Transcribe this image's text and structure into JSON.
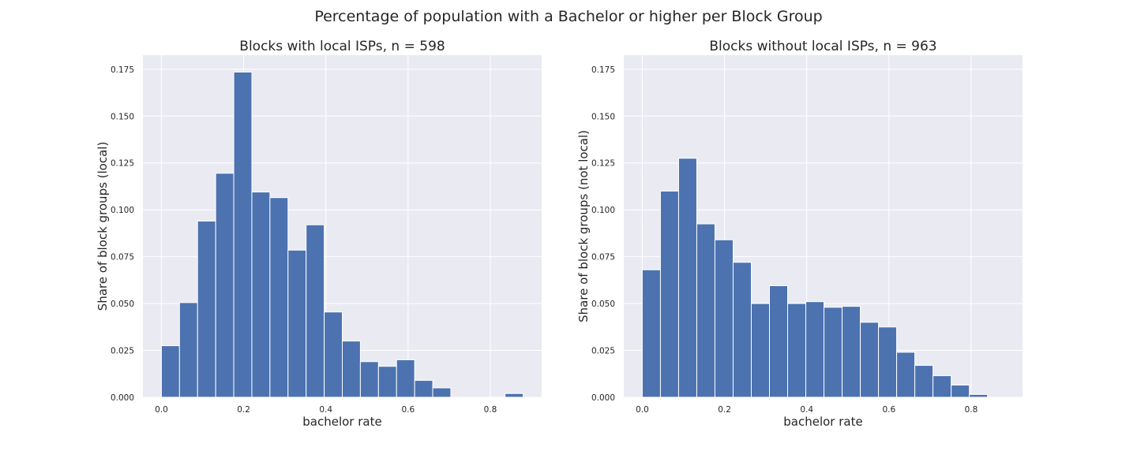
{
  "figure": {
    "title": "Percentage of population with a Bachelor or higher per Block Group"
  },
  "style": {
    "background": "#ffffff",
    "axes_face": "#eaeaf2",
    "grid": "#ffffff",
    "bar_color": "#4c72b0",
    "bar_edge": "#ffffff",
    "text": "#262626"
  },
  "chart_data": [
    {
      "type": "bar",
      "title": "Blocks with local ISPs, n = 598",
      "xlabel": "bachelor rate",
      "ylabel": "Share of block groups (local)",
      "xlim": [
        -0.045,
        0.925
      ],
      "ylim": [
        0,
        0.1825
      ],
      "xticks": [
        "0.0",
        "0.2",
        "0.4",
        "0.6",
        "0.8"
      ],
      "yticks": [
        "0.000",
        "0.025",
        "0.050",
        "0.075",
        "0.100",
        "0.125",
        "0.150",
        "0.175"
      ],
      "grid": true,
      "bin_edges": [
        0.0,
        0.044,
        0.088,
        0.132,
        0.176,
        0.22,
        0.264,
        0.308,
        0.352,
        0.396,
        0.44,
        0.484,
        0.528,
        0.572,
        0.616,
        0.66,
        0.704,
        0.748,
        0.792,
        0.836,
        0.88
      ],
      "values": [
        0.0275,
        0.0505,
        0.094,
        0.1195,
        0.1735,
        0.1095,
        0.1065,
        0.0785,
        0.092,
        0.0455,
        0.03,
        0.019,
        0.0165,
        0.02,
        0.009,
        0.005,
        0.0,
        0.0,
        0.0,
        0.002
      ]
    },
    {
      "type": "bar",
      "title": "Blocks without local ISPs, n = 963",
      "xlabel": "bachelor rate",
      "ylabel": "Share of block groups (not local)",
      "xlim": [
        -0.045,
        0.925
      ],
      "ylim": [
        0,
        0.1825
      ],
      "xticks": [
        "0.0",
        "0.2",
        "0.4",
        "0.6",
        "0.8"
      ],
      "yticks": [
        "0.000",
        "0.025",
        "0.050",
        "0.075",
        "0.100",
        "0.125",
        "0.150",
        "0.175"
      ],
      "grid": true,
      "bin_edges": [
        0.0,
        0.0442,
        0.0884,
        0.1326,
        0.1768,
        0.221,
        0.2652,
        0.3094,
        0.3536,
        0.3978,
        0.442,
        0.4862,
        0.5304,
        0.5746,
        0.6188,
        0.663,
        0.7072,
        0.7514,
        0.7956,
        0.8398,
        0.884
      ],
      "values": [
        0.068,
        0.11,
        0.1275,
        0.0925,
        0.084,
        0.072,
        0.05,
        0.0595,
        0.05,
        0.051,
        0.048,
        0.0485,
        0.04,
        0.0375,
        0.024,
        0.017,
        0.0115,
        0.0065,
        0.0015,
        0.0
      ]
    }
  ]
}
